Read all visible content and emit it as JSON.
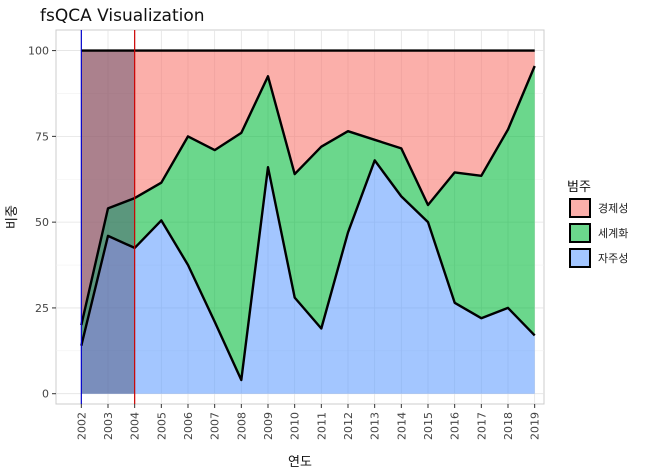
{
  "chart_data": {
    "type": "area",
    "title": "fsQCA Visualization",
    "xlabel": "연도",
    "ylabel": "비중",
    "xlim": [
      2001.05,
      2019.35
    ],
    "ylim": [
      -3,
      106
    ],
    "x_ticks": [
      2002,
      2003,
      2004,
      2005,
      2006,
      2007,
      2008,
      2009,
      2010,
      2011,
      2012,
      2013,
      2014,
      2015,
      2016,
      2017,
      2018,
      2019
    ],
    "y_ticks": [
      0,
      25,
      50,
      75,
      100
    ],
    "grid": true,
    "x_tick_rotation": -90,
    "legend": {
      "title": "범주",
      "position": "right"
    },
    "stack_order": [
      "자주성",
      "세계화",
      "경제성"
    ],
    "series": [
      {
        "name": "경제성",
        "color": "#F8766D",
        "values": [
          80,
          46,
          43,
          38.5,
          25,
          29,
          24,
          7.5,
          36,
          28,
          23.5,
          26,
          28.5,
          45,
          35.5,
          36.5,
          23,
          4.5
        ]
      },
      {
        "name": "세계화",
        "color": "#00BA38",
        "values": [
          6,
          8,
          14.5,
          11,
          37.5,
          50,
          72,
          26.5,
          36,
          53,
          29.5,
          6,
          14,
          5,
          38,
          41.5,
          52,
          78.5
        ]
      },
      {
        "name": "자주성",
        "color": "#619CFF",
        "values": [
          14,
          46,
          42.5,
          50.5,
          37.5,
          21,
          4,
          66,
          28,
          19,
          47,
          68,
          57.5,
          50,
          26.5,
          22,
          25,
          17
        ]
      }
    ],
    "x": [
      2002,
      2003,
      2004,
      2005,
      2006,
      2007,
      2008,
      2009,
      2010,
      2011,
      2012,
      2013,
      2014,
      2015,
      2016,
      2017,
      2018,
      2019
    ],
    "shaded_region": {
      "x_start": 2002,
      "x_end": 2004,
      "color": "#4a4a6a"
    },
    "vertical_lines": [
      {
        "x": 2002,
        "color": "#0000cc"
      },
      {
        "x": 2004,
        "color": "#cc0000"
      }
    ]
  }
}
